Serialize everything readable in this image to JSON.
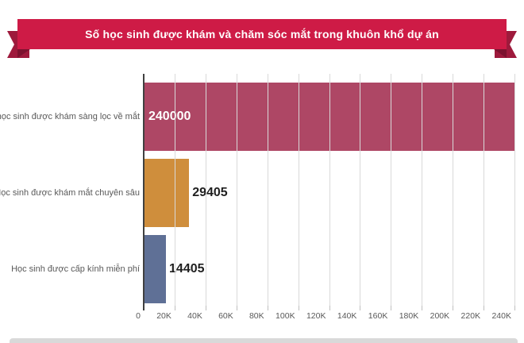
{
  "banner": {
    "title": "Số học sinh được khám và chăm sóc mắt trong khuôn khổ dự án",
    "ribbon_color": "#ce1b46",
    "ribbon_fold_color": "#9e1a3c",
    "ribbon_fold_dark_color": "#7c122f"
  },
  "chart_data": {
    "type": "bar",
    "orientation": "horizontal",
    "title": "Số học sinh được khám và chăm sóc mắt trong khuôn khổ dự án",
    "categories": [
      "Số học sinh được khám sàng lọc về mắt",
      "Học sinh được khám mắt chuyên sâu",
      "Học sinh được cấp kính miễn phí"
    ],
    "values": [
      240000,
      29405,
      14405
    ],
    "value_labels": [
      "240000",
      "29405",
      "14405"
    ],
    "bar_colors": [
      "#ae4765",
      "#cf8e3c",
      "#5f7096"
    ],
    "value_label_colors": [
      "#ffffff",
      "#1f1f1f",
      "#1f1f1f"
    ],
    "xlim": [
      0,
      240000
    ],
    "x_ticks": [
      "0",
      "20K",
      "40K",
      "60K",
      "80K",
      "100K",
      "120K",
      "140K",
      "160K",
      "180K",
      "200K",
      "220K",
      "240K"
    ],
    "x_tick_values": [
      0,
      20000,
      40000,
      60000,
      80000,
      100000,
      120000,
      140000,
      160000,
      180000,
      200000,
      220000,
      240000
    ],
    "grid": "vertical-gridlines-on",
    "legend": "none",
    "axis_color": "#404040",
    "gridline_color": "#d9d9d9",
    "tick_color": "#bfbfbf",
    "label_color": "#595959"
  },
  "colors": {
    "background": "#ffffff",
    "footer_band": "#d9d9d9"
  }
}
